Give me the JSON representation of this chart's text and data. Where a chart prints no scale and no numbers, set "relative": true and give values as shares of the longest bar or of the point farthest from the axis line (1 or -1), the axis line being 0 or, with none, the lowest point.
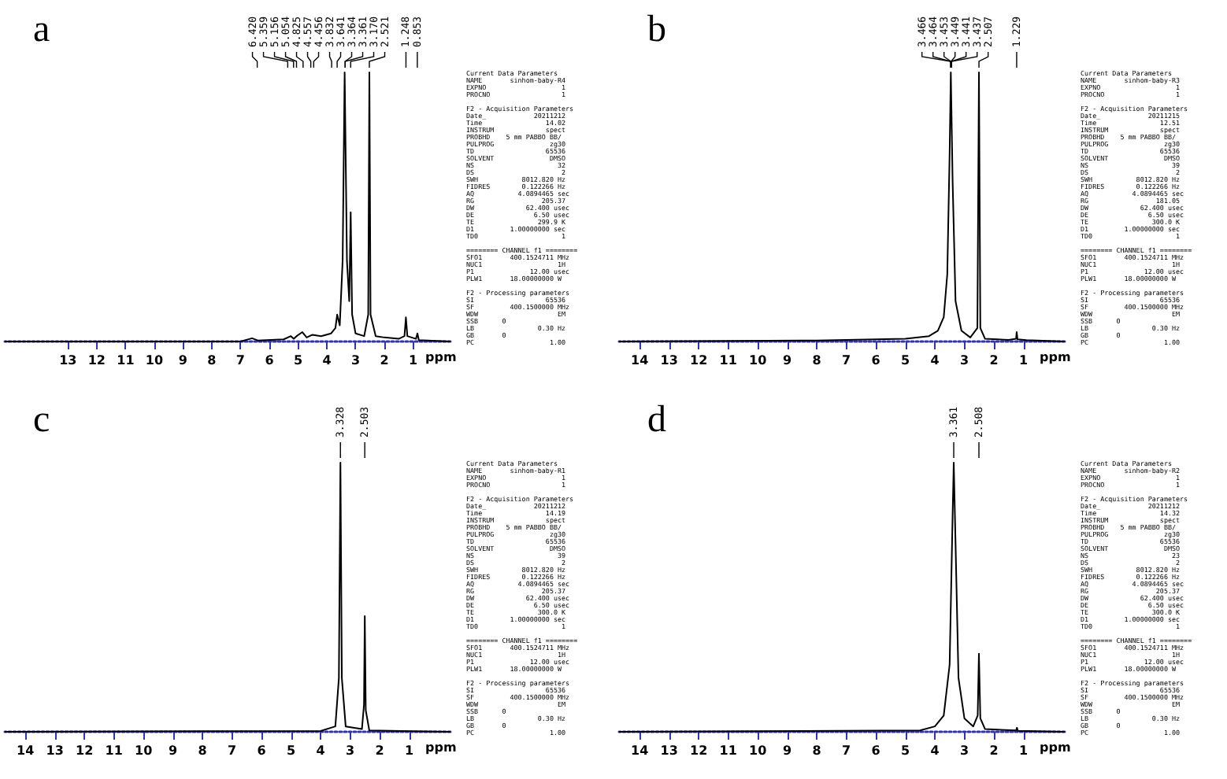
{
  "chart_data": [
    {
      "type": "line",
      "title": "a",
      "xlabel": "ppm",
      "relative": true,
      "color": "#000000",
      "xlim": [
        15.2,
        -0.3
      ],
      "xticks": [
        13,
        12,
        11,
        10,
        9,
        8,
        7,
        6,
        5,
        4,
        3,
        2,
        1
      ],
      "x": [
        15.2,
        7,
        6.6,
        6.4,
        5.5,
        5.25,
        5.15,
        5.05,
        4.85,
        4.7,
        4.5,
        4.2,
        3.85,
        3.7,
        3.64,
        3.55,
        3.45,
        3.38,
        3.3,
        3.22,
        3.17,
        3.12,
        3.0,
        2.7,
        2.56,
        2.52,
        2.48,
        2.3,
        2.0,
        1.5,
        1.3,
        1.25,
        1.2,
        0.9,
        0.85,
        0.8,
        -0.3
      ],
      "values": [
        0,
        0,
        0.012,
        0.004,
        0.008,
        0.02,
        0.01,
        0.02,
        0.035,
        0.015,
        0.025,
        0.02,
        0.03,
        0.05,
        0.1,
        0.06,
        0.3,
        1,
        0.3,
        0.15,
        0.48,
        0.1,
        0.03,
        0.02,
        0.1,
        1,
        0.1,
        0.02,
        0.015,
        0.01,
        0.02,
        0.09,
        0.02,
        0.01,
        0.03,
        0.005,
        0
      ],
      "annotations": [
        "Current Data Parameters\nNAME       sinhom-baby-R4\nEXPNO                   1\nPROCNO                  1\n\nF2 - Acquisition Parameters\nDate_            20211212\nTime                14.02\nINSTRUM             spect\nPROBHD    5 mm PABBO BB/\nPULPROG              zg30\nTD                  65536\nSOLVENT              DMSO\nNS                     32\nDS                      2\nSWH           8012.820 Hz\nFIDRES        0.122266 Hz\nAQ           4.0894465 sec\nRG                 205.37\nDW             62.400 usec\nDE               6.50 usec\nTE                299.9 K\nD1         1.00000000 sec\nTD0                     1\n\n======== CHANNEL f1 ========\nSFO1       400.1524711 MHz\nNUC1                   1H\nP1              12.00 usec\nPLW1       18.00000000 W\n\nF2 - Processing parameters\nSI                  65536\nSF         400.1500000 MHz\nWDW                    EM\nSSB      0\nLB                0.30 Hz\nGB       0\nPC                   1.00",
        {
          "text": "6.420",
          "x": 6.42
        },
        {
          "text": "5.359",
          "x": 5.359
        },
        {
          "text": "5.156",
          "x": 5.156
        },
        {
          "text": "5.054",
          "x": 5.054
        },
        {
          "text": "4.825",
          "x": 4.825
        },
        {
          "text": "4.557",
          "x": 4.557
        },
        {
          "text": "4.456",
          "x": 4.456
        },
        {
          "text": "3.832",
          "x": 3.832
        },
        {
          "text": "3.641",
          "x": 3.641
        },
        {
          "text": "3.364",
          "x": 3.364
        },
        {
          "text": "3.361",
          "x": 3.361
        },
        {
          "text": "3.170",
          "x": 3.17
        },
        {
          "text": "2.521",
          "x": 2.521
        },
        {
          "text": "1.248",
          "x": 1.248
        },
        {
          "text": "0.853",
          "x": 0.853
        }
      ]
    },
    {
      "type": "line",
      "title": "b",
      "xlabel": "ppm",
      "relative": true,
      "color": "#000000",
      "xlim": [
        14.7,
        -0.4
      ],
      "xticks": [
        14,
        13,
        12,
        11,
        10,
        9,
        8,
        7,
        6,
        5,
        4,
        3,
        2,
        1
      ],
      "x": [
        14.7,
        8,
        5,
        4.2,
        3.9,
        3.7,
        3.58,
        3.5,
        3.46,
        3.44,
        3.4,
        3.3,
        3.1,
        2.8,
        2.56,
        2.507,
        2.46,
        2.3,
        1.5,
        1.25,
        1.229,
        1.2,
        0.9,
        -0.4
      ],
      "values": [
        0,
        0.004,
        0.01,
        0.02,
        0.04,
        0.09,
        0.25,
        0.7,
        1,
        1,
        0.6,
        0.15,
        0.04,
        0.015,
        0.05,
        1,
        0.05,
        0.01,
        0.006,
        0.01,
        0.035,
        0.008,
        0.005,
        0
      ],
      "annotations": [
        "Current Data Parameters\nNAME       sinhom-baby-R3\nEXPNO                   1\nPROCNO                  1\n\nF2 - Acquisition Parameters\nDate_            20211215\nTime                12.51\nINSTRUM             spect\nPROBHD    5 mm PABBO BB/\nPULPROG              zg30\nTD                  65536\nSOLVENT              DMSO\nNS                     39\nDS                      2\nSWH           8012.820 Hz\nFIDRES        0.122266 Hz\nAQ           4.0894465 sec\nRG                 181.05\nDW             62.400 usec\nDE               6.50 usec\nTE                300.0 K\nD1         1.00000000 sec\nTD0                     1\n\n======== CHANNEL f1 ========\nSFO1       400.1524711 MHz\nNUC1                   1H\nP1              12.00 usec\nPLW1       18.00000000 W\n\nF2 - Processing parameters\nSI                  65536\nSF         400.1500000 MHz\nWDW                    EM\nSSB      0\nLB                0.30 Hz\nGB       0\nPC                   1.00",
        {
          "text": "3.466",
          "x": 3.466
        },
        {
          "text": "3.464",
          "x": 3.464
        },
        {
          "text": "3.453",
          "x": 3.453
        },
        {
          "text": "3.449",
          "x": 3.449
        },
        {
          "text": "3.441",
          "x": 3.441
        },
        {
          "text": "3.437",
          "x": 3.437
        },
        {
          "text": "2.507",
          "x": 2.507
        },
        {
          "text": "1.229",
          "x": 1.229
        }
      ]
    },
    {
      "type": "line",
      "title": "c",
      "xlabel": "ppm",
      "relative": true,
      "color": "#000000",
      "xlim": [
        14.7,
        -0.4
      ],
      "xticks": [
        14,
        13,
        12,
        11,
        10,
        9,
        8,
        7,
        6,
        5,
        4,
        3,
        2,
        1
      ],
      "x": [
        14.7,
        4,
        3.5,
        3.38,
        3.328,
        3.28,
        3.15,
        2.6,
        2.53,
        2.503,
        2.47,
        2.35,
        -0.4
      ],
      "values": [
        0,
        0.003,
        0.02,
        0.2,
        1,
        0.2,
        0.02,
        0.01,
        0.1,
        0.43,
        0.08,
        0.005,
        0
      ],
      "annotations": [
        "Current Data Parameters\nNAME       sinhom-baby-R1\nEXPNO                   1\nPROCNO                  1\n\nF2 - Acquisition Parameters\nDate_            20211212\nTime                14.19\nINSTRUM             spect\nPROBHD    5 mm PABBO BB/\nPULPROG              zg30\nTD                  65536\nSOLVENT              DMSO\nNS                     39\nDS                      2\nSWH           8012.820 Hz\nFIDRES        0.122266 Hz\nAQ           4.0894465 sec\nRG                 205.37\nDW             62.400 usec\nDE               6.50 usec\nTE                300.0 K\nD1         1.00000000 sec\nTD0                     1\n\n======== CHANNEL f1 ========\nSFO1       400.1524711 MHz\nNUC1                   1H\nP1              12.00 usec\nPLW1       18.00000000 W\n\nF2 - Processing parameters\nSI                  65536\nSF         400.1500000 MHz\nWDW                    EM\nSSB      0\nLB                0.30 Hz\nGB       0\nPC                   1.00",
        {
          "text": "3.328",
          "x": 3.328
        },
        {
          "text": "2.503",
          "x": 2.503
        }
      ]
    },
    {
      "type": "line",
      "title": "d",
      "xlabel": "ppm",
      "relative": true,
      "color": "#000000",
      "xlim": [
        14.7,
        -0.4
      ],
      "xticks": [
        14,
        13,
        12,
        11,
        10,
        9,
        8,
        7,
        6,
        5,
        4,
        3,
        2,
        1
      ],
      "x": [
        14.7,
        4.5,
        4,
        3.7,
        3.5,
        3.4,
        3.361,
        3.3,
        3.2,
        3.0,
        2.7,
        2.55,
        2.508,
        2.46,
        2.3,
        1.25,
        1.22,
        1.19,
        -0.4
      ],
      "values": [
        0,
        0.005,
        0.02,
        0.06,
        0.25,
        0.8,
        1,
        0.7,
        0.2,
        0.05,
        0.02,
        0.06,
        0.29,
        0.05,
        0.01,
        0.005,
        0.015,
        0.004,
        0
      ],
      "annotations": [
        "Current Data Parameters\nNAME       sinhom-baby-R2\nEXPNO                   1\nPROCNO                  1\n\nF2 - Acquisition Parameters\nDate_            20211212\nTime                14.32\nINSTRUM             spect\nPROBHD    5 mm PABBO BB/\nPULPROG              zg30\nTD                  65536\nSOLVENT              DMSO\nNS                     23\nDS                      2\nSWH           8012.820 Hz\nFIDRES        0.122266 Hz\nAQ           4.0894465 sec\nRG                 205.37\nDW             62.400 usec\nDE               6.50 usec\nTE                300.0 K\nD1         1.00000000 sec\nTD0                     1\n\n======== CHANNEL f1 ========\nSFO1       400.1524711 MHz\nNUC1                   1H\nP1              12.00 usec\nPLW1       18.00000000 W\n\nF2 - Processing parameters\nSI                  65536\nSF         400.1500000 MHz\nWDW                    EM\nSSB      0\nLB                0.30 Hz\nGB       0\nPC                   1.00",
        {
          "text": "3.361",
          "x": 3.361
        },
        {
          "text": "2.508",
          "x": 2.508
        }
      ]
    }
  ]
}
